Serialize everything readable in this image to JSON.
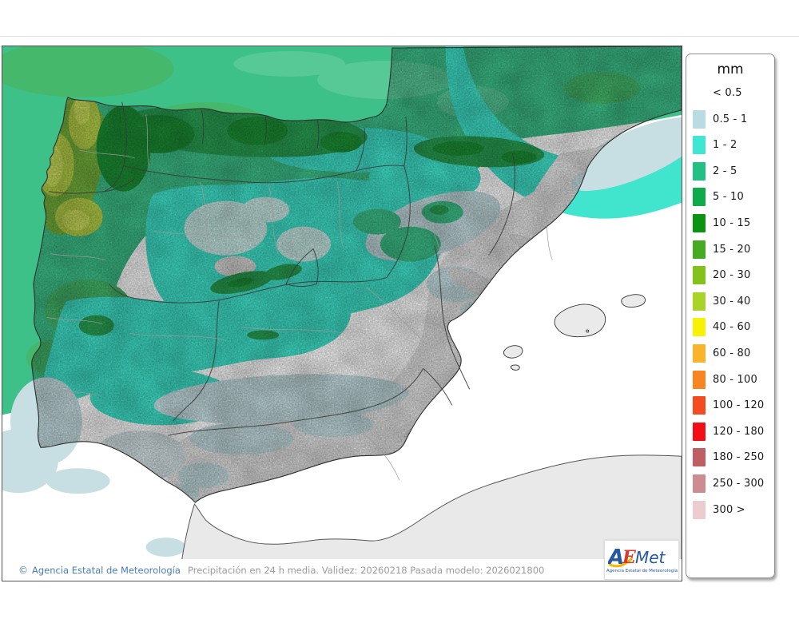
{
  "legend": {
    "title": "mm",
    "rows": [
      {
        "label": "< 0.5",
        "color": null
      },
      {
        "label": "0.5 - 1",
        "color": "#b9dbe3"
      },
      {
        "label": "1 - 2",
        "color": "#3fe6d4"
      },
      {
        "label": "2 - 5",
        "color": "#22c183"
      },
      {
        "label": "5 - 10",
        "color": "#0faa4a"
      },
      {
        "label": "10 - 15",
        "color": "#0b9412"
      },
      {
        "label": "15 - 20",
        "color": "#47ab21"
      },
      {
        "label": "20 - 30",
        "color": "#83c319"
      },
      {
        "label": "30 - 40",
        "color": "#a9d326"
      },
      {
        "label": "40 - 60",
        "color": "#f7f204"
      },
      {
        "label": "60 - 80",
        "color": "#f9b42c"
      },
      {
        "label": "80 - 100",
        "color": "#f98521"
      },
      {
        "label": "100 - 120",
        "color": "#f64a20"
      },
      {
        "label": "120 - 180",
        "color": "#f30d14"
      },
      {
        "label": "180 - 250",
        "color": "#bf5f63"
      },
      {
        "label": "250 - 300",
        "color": "#cd8d90"
      },
      {
        "label": "300 >",
        "color": "#ecccce"
      }
    ]
  },
  "footer": {
    "copyright_symbol": "©",
    "agency": "Agencia Estatal de Meteorología",
    "caption": "Precipitación en 24 h media. Validez: 20260218 Pasada modelo: 2026021800"
  },
  "logo": {
    "a": "A",
    "e": "E",
    "met": "Met",
    "subtitle": "Agencia Estatal de Meteorología",
    "blue": "#2457a4",
    "red": "#d8392b",
    "yellow": "#f2b705"
  },
  "map": {
    "region": "Iberian Peninsula precipitation field",
    "colors": {
      "sea_no_precip": "#ffffff",
      "land_no_precip": "#e7e7e7",
      "precip_0_5_1": "#c7dfe3",
      "precip_1_2": "#41e4cd",
      "precip_2_5": "#3ec189",
      "precip_2_5_light": "#57c997",
      "precip_5_10": "#2aa053",
      "precip_10_15": "#1d9035",
      "precip_15_20": "#74b13c",
      "precip_20_30": "#b5cf48",
      "precip_30_40": "#cde05c"
    }
  }
}
